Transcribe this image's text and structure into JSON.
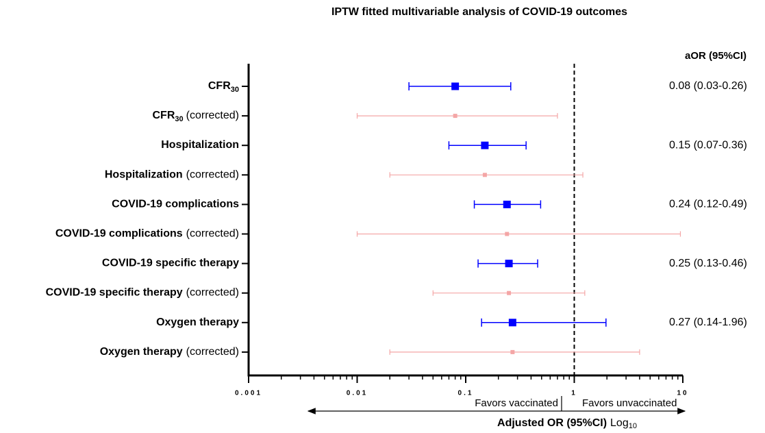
{
  "chart_data": {
    "type": "forest",
    "title": "IPTW fitted multivariable analysis of COVID-19 outcomes",
    "column_header": "aOR (95%CI)",
    "categories": [
      {
        "bold": "CFR",
        "sub": "30"
      },
      {
        "bold": "CFR",
        "sub": "30",
        "suffix": "(corrected)"
      },
      {
        "bold": "Hospitalization"
      },
      {
        "bold": "Hospitalization",
        "suffix": "(corrected)"
      },
      {
        "bold": "COVID-19 complications"
      },
      {
        "bold": "COVID-19 complications",
        "suffix": "(corrected)"
      },
      {
        "bold": "COVID-19 specific therapy"
      },
      {
        "bold": "COVID-19 specific therapy",
        "suffix": "(corrected)"
      },
      {
        "bold": "Oxygen therapy"
      },
      {
        "bold": "Oxygen therapy",
        "suffix": "(corrected)"
      }
    ],
    "series": [
      {
        "color": "#0000ff",
        "estimate": [
          0.08,
          0.15,
          0.24,
          0.25,
          0.27
        ],
        "lower": [
          0.03,
          0.07,
          0.12,
          0.13,
          0.14
        ],
        "upper": [
          0.26,
          0.36,
          0.49,
          0.46,
          1.96
        ],
        "value_labels": [
          "0.08 (0.03-0.26)",
          "0.15 (0.07-0.36)",
          "0.24 (0.12-0.49)",
          "0.25 (0.13-0.46)",
          "0.27 (0.14-1.96)"
        ]
      },
      {
        "color": "#f4a6a6",
        "estimate": [
          0.08,
          0.15,
          0.24,
          0.25,
          0.27
        ],
        "lower": [
          0.01,
          0.02,
          0.01,
          0.05,
          0.02
        ],
        "upper": [
          0.7,
          1.2,
          9.5,
          1.25,
          4
        ]
      }
    ],
    "log_scale": true,
    "xlim": [
      0.001,
      10
    ],
    "xticks": [
      0.001,
      0.01,
      0.1,
      1,
      10
    ],
    "reference_line": 1,
    "annotations": [
      "Favors vaccinated",
      "Favors unvaccinated"
    ],
    "xlabel": {
      "bold": "Adjusted OR (95%CI)",
      "text": "Log",
      "sub": "10"
    }
  }
}
